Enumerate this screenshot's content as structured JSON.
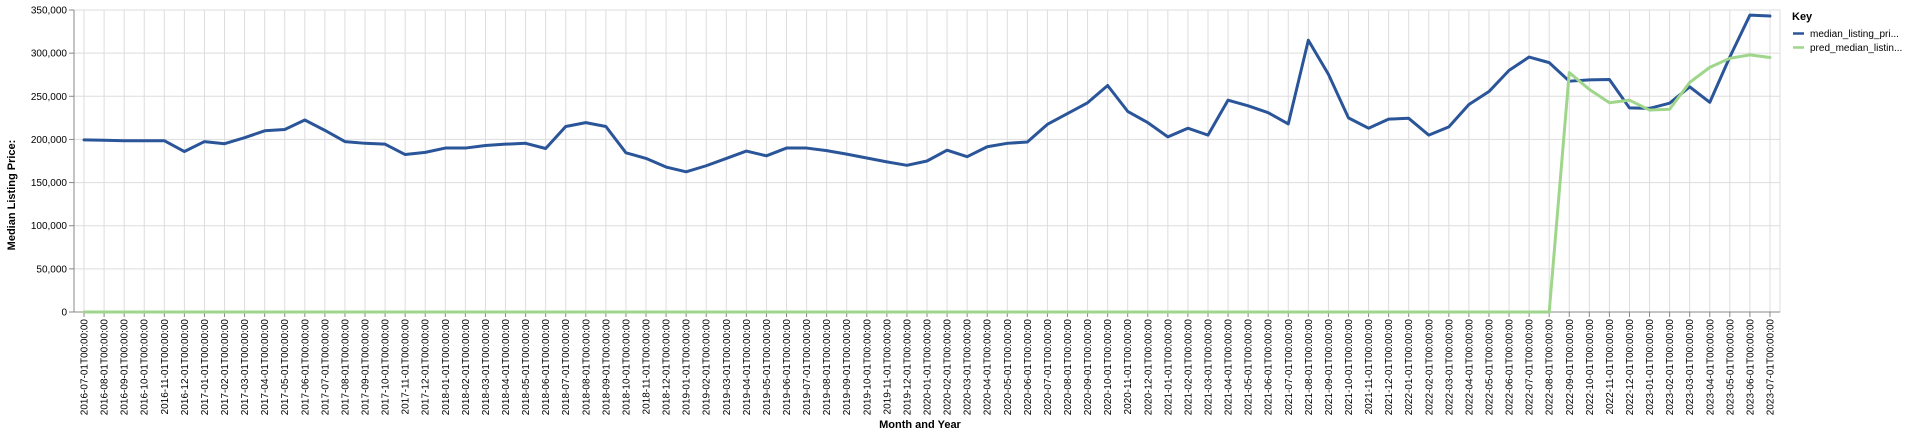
{
  "chart_data": {
    "type": "line",
    "xlabel": "Month and Year",
    "ylabel": "Median Listing Price:",
    "ylim": [
      0,
      350000
    ],
    "yticks": [
      0,
      50000,
      100000,
      150000,
      200000,
      250000,
      300000,
      350000
    ],
    "ytick_labels": [
      "0",
      "50,000",
      "100,000",
      "150,000",
      "200,000",
      "250,000",
      "300,000",
      "350,000"
    ],
    "grid": true,
    "legend": {
      "title": "Key",
      "position": "top-right"
    },
    "x": [
      "2016-07-01T00:00:00",
      "2016-08-01T00:00:00",
      "2016-09-01T00:00:00",
      "2016-10-01T00:00:00",
      "2016-11-01T00:00:00",
      "2016-12-01T00:00:00",
      "2017-01-01T00:00:00",
      "2017-02-01T00:00:00",
      "2017-03-01T00:00:00",
      "2017-04-01T00:00:00",
      "2017-05-01T00:00:00",
      "2017-06-01T00:00:00",
      "2017-07-01T00:00:00",
      "2017-08-01T00:00:00",
      "2017-09-01T00:00:00",
      "2017-10-01T00:00:00",
      "2017-11-01T00:00:00",
      "2017-12-01T00:00:00",
      "2018-01-01T00:00:00",
      "2018-02-01T00:00:00",
      "2018-03-01T00:00:00",
      "2018-04-01T00:00:00",
      "2018-05-01T00:00:00",
      "2018-06-01T00:00:00",
      "2018-07-01T00:00:00",
      "2018-08-01T00:00:00",
      "2018-09-01T00:00:00",
      "2018-10-01T00:00:00",
      "2018-11-01T00:00:00",
      "2018-12-01T00:00:00",
      "2019-01-01T00:00:00",
      "2019-02-01T00:00:00",
      "2019-03-01T00:00:00",
      "2019-04-01T00:00:00",
      "2019-05-01T00:00:00",
      "2019-06-01T00:00:00",
      "2019-07-01T00:00:00",
      "2019-08-01T00:00:00",
      "2019-09-01T00:00:00",
      "2019-10-01T00:00:00",
      "2019-11-01T00:00:00",
      "2019-12-01T00:00:00",
      "2020-01-01T00:00:00",
      "2020-02-01T00:00:00",
      "2020-03-01T00:00:00",
      "2020-04-01T00:00:00",
      "2020-05-01T00:00:00",
      "2020-06-01T00:00:00",
      "2020-07-01T00:00:00",
      "2020-08-01T00:00:00",
      "2020-09-01T00:00:00",
      "2020-10-01T00:00:00",
      "2020-11-01T00:00:00",
      "2020-12-01T00:00:00",
      "2021-01-01T00:00:00",
      "2021-02-01T00:00:00",
      "2021-03-01T00:00:00",
      "2021-04-01T00:00:00",
      "2021-05-01T00:00:00",
      "2021-06-01T00:00:00",
      "2021-07-01T00:00:00",
      "2021-08-01T00:00:00",
      "2021-09-01T00:00:00",
      "2021-10-01T00:00:00",
      "2021-11-01T00:00:00",
      "2021-12-01T00:00:00",
      "2022-01-01T00:00:00",
      "2022-02-01T00:00:00",
      "2022-03-01T00:00:00",
      "2022-04-01T00:00:00",
      "2022-05-01T00:00:00",
      "2022-06-01T00:00:00",
      "2022-07-01T00:00:00",
      "2022-08-01T00:00:00",
      "2022-09-01T00:00:00",
      "2022-10-01T00:00:00",
      "2022-11-01T00:00:00",
      "2022-12-01T00:00:00",
      "2023-01-01T00:00:00",
      "2023-02-01T00:00:00",
      "2023-03-01T00:00:00",
      "2023-04-01T00:00:00",
      "2023-05-01T00:00:00",
      "2023-06-01T00:00:00",
      "2023-07-01T00:00:00"
    ],
    "series": [
      {
        "name": "median_listing_pri...",
        "color": "#2a5599",
        "values": [
          199500,
          199000,
          198500,
          198500,
          198500,
          186000,
          197500,
          195000,
          202000,
          210000,
          211500,
          222500,
          210500,
          197500,
          195500,
          194500,
          182500,
          185000,
          190000,
          190000,
          193000,
          194500,
          195500,
          189500,
          215000,
          219500,
          215000,
          184500,
          178000,
          168000,
          162500,
          169500,
          178000,
          186500,
          181000,
          190000,
          190000,
          187000,
          183000,
          178500,
          174000,
          170000,
          175000,
          187500,
          180000,
          191500,
          195500,
          197000,
          217500,
          230000,
          242500,
          262500,
          232500,
          219500,
          203000,
          213000,
          205000,
          245500,
          239000,
          231000,
          218000,
          315000,
          275500,
          225000,
          213000,
          223500,
          224500,
          205000,
          214500,
          240500,
          255500,
          280000,
          295500,
          289000,
          267500,
          269000,
          269500,
          236500,
          236000,
          242000,
          261000,
          243000,
          295500,
          344000,
          343000
        ]
      },
      {
        "name": "pred_median_listin...",
        "color": "#9fd68c",
        "values": [
          0,
          0,
          0,
          0,
          0,
          0,
          0,
          0,
          0,
          0,
          0,
          0,
          0,
          0,
          0,
          0,
          0,
          0,
          0,
          0,
          0,
          0,
          0,
          0,
          0,
          0,
          0,
          0,
          0,
          0,
          0,
          0,
          0,
          0,
          0,
          0,
          0,
          0,
          0,
          0,
          0,
          0,
          0,
          0,
          0,
          0,
          0,
          0,
          0,
          0,
          0,
          0,
          0,
          0,
          0,
          0,
          0,
          0,
          0,
          0,
          0,
          0,
          0,
          0,
          0,
          0,
          0,
          0,
          0,
          0,
          0,
          0,
          0,
          0,
          277500,
          258000,
          242500,
          245500,
          234000,
          235000,
          266000,
          283500,
          294000,
          298000,
          295000
        ]
      }
    ]
  }
}
